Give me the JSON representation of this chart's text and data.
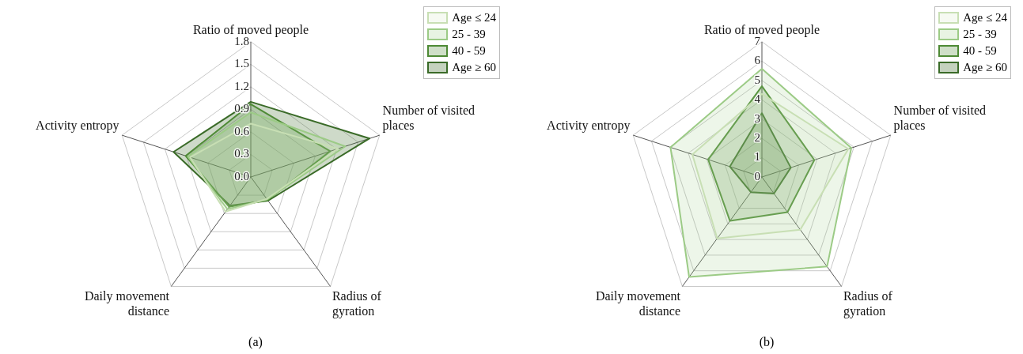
{
  "chart_data": [
    {
      "type": "radar",
      "categories": [
        "Ratio of moved people",
        "Number of visited places",
        "Radius of gyration",
        "Daily movement distance",
        "Activity entropy"
      ],
      "ylim": [
        0,
        1.8
      ],
      "yticks": [
        {
          "value": 0,
          "label": "0.0"
        },
        0.3,
        0.6,
        0.9,
        1.2,
        1.5,
        1.8
      ],
      "grid": true,
      "legend": "top right",
      "marker": "none",
      "annotations": [
        "(a)"
      ],
      "series": [
        {
          "name": "Age ≤ 24",
          "color": "#c8dfb4",
          "values": [
            0.71,
            1.22,
            0.36,
            0.57,
            0.85
          ]
        },
        {
          "name": "25 - 39",
          "color": "#9ccb86",
          "values": [
            0.86,
            1.32,
            0.37,
            0.53,
            0.88
          ]
        },
        {
          "name": "40 - 59",
          "color": "#4e8a35",
          "values": [
            0.97,
            1.11,
            0.38,
            0.49,
            0.91
          ]
        },
        {
          "name": "Age ≥ 60",
          "color": "#3a6b28",
          "values": [
            1.0,
            1.66,
            0.39,
            0.47,
            1.08
          ]
        }
      ]
    },
    {
      "type": "radar",
      "categories": [
        "Ratio of moved people",
        "Number of visited places",
        "Radius of gyration",
        "Daily movement distance",
        "Activity entropy"
      ],
      "ylim": [
        0,
        7
      ],
      "yticks": [
        0,
        1,
        2,
        3,
        4,
        5,
        6,
        7
      ],
      "grid": true,
      "legend": "top right",
      "marker": "none",
      "annotations": [
        "(b)"
      ],
      "series": [
        {
          "name": "Age ≤ 24",
          "color": "#c8dfb4",
          "values": [
            4.3,
            4.7,
            3.37,
            3.93,
            3.78
          ]
        },
        {
          "name": "25 - 39",
          "color": "#9ccb86",
          "values": [
            5.6,
            4.86,
            5.73,
            6.4,
            4.97
          ]
        },
        {
          "name": "40 - 59",
          "color": "#4e8a35",
          "values": [
            4.7,
            2.85,
            2.25,
            2.81,
            2.92
          ]
        },
        {
          "name": "Age ≥ 60",
          "color": "#3a6b28",
          "values": [
            3.3,
            1.57,
            1.06,
            0.97,
            1.74
          ]
        }
      ]
    }
  ]
}
